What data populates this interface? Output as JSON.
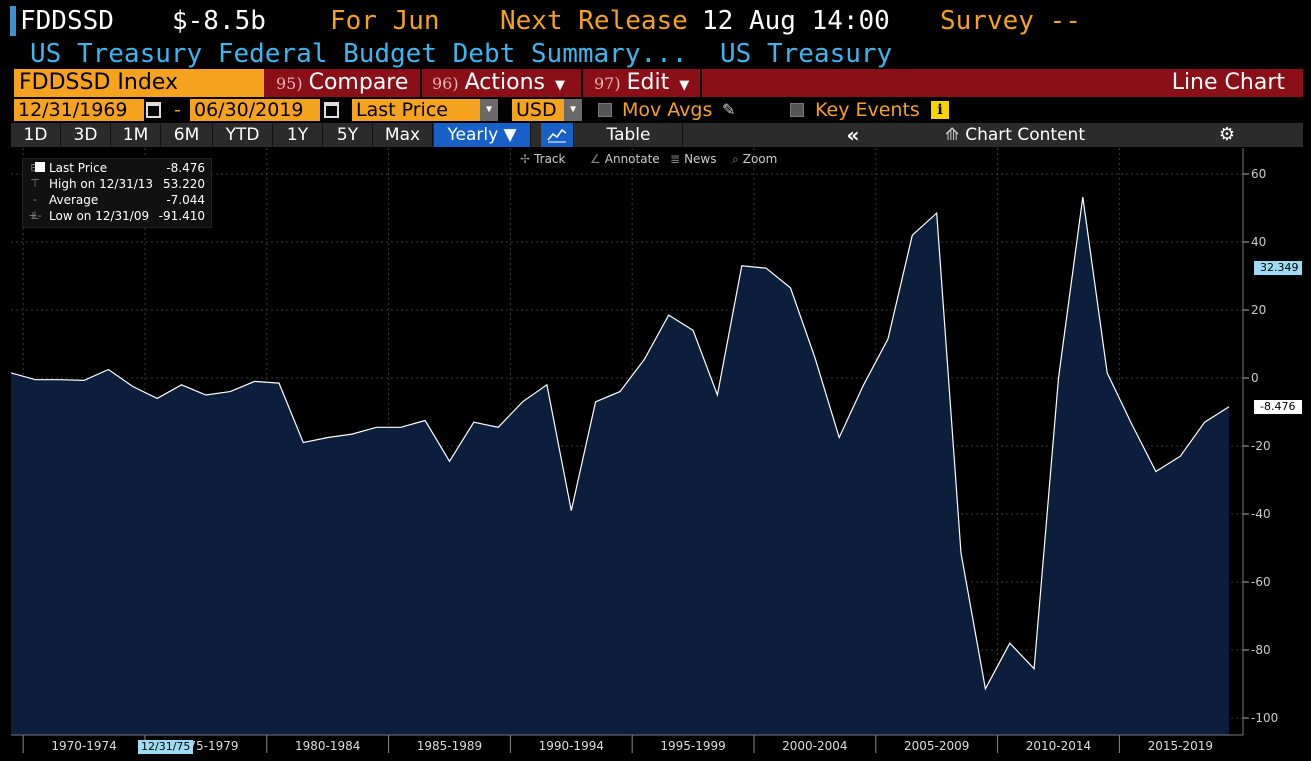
{
  "header": {
    "ticker": "FDDSSD",
    "value": "$-8.5b",
    "for_label": "For Jun",
    "next_release": "Next Release",
    "release_time": "12 Aug 14:00",
    "survey": "Survey --",
    "description": "US Treasury Federal Budget Debt Summary...",
    "source": "US Treasury"
  },
  "command_bar": {
    "security": "FDDSSD Index",
    "compare_num": "95)",
    "compare": "Compare",
    "actions_num": "96)",
    "actions": "Actions",
    "edit_num": "97)",
    "edit": "Edit",
    "chart_type": "Line Chart"
  },
  "range": {
    "start": "12/31/1969",
    "dash": "-",
    "end": "06/30/2019",
    "field": "Last Price",
    "currency": "USD",
    "mov_avgs": "Mov Avgs",
    "key_events": "Key Events",
    "info_icon": "i"
  },
  "periods": [
    "1D",
    "3D",
    "1M",
    "6M",
    "YTD",
    "1Y",
    "5Y",
    "Max"
  ],
  "frequency": "Yearly ▼",
  "table_label": "Table",
  "collapse_icon": "«",
  "chart_content": "Chart Content",
  "gear_icon": "⚙",
  "tools": {
    "track": "Track",
    "annotate": "Annotate",
    "news": "News",
    "zoom": "Zoom"
  },
  "legend": {
    "last_label": "Last Price",
    "last_value": "-8.476",
    "high_label": "High on 12/31/13",
    "high_value": "53.220",
    "avg_label": "Average",
    "avg_value": "-7.044",
    "low_label": "Low on 12/31/09",
    "low_value": "-91.410"
  },
  "cursor_date": "12/31/75",
  "chart_data": {
    "type": "area",
    "x": [
      1969,
      1970,
      1971,
      1972,
      1973,
      1974,
      1975,
      1976,
      1977,
      1978,
      1979,
      1980,
      1981,
      1982,
      1983,
      1984,
      1985,
      1986,
      1987,
      1988,
      1989,
      1990,
      1991,
      1992,
      1993,
      1994,
      1995,
      1996,
      1997,
      1998,
      1999,
      2000,
      2001,
      2002,
      2003,
      2004,
      2005,
      2006,
      2007,
      2008,
      2009,
      2010,
      2011,
      2012,
      2013,
      2014,
      2015,
      2016,
      2017,
      2018,
      2019
    ],
    "values": [
      1.5,
      -0.5,
      -0.5,
      -0.7,
      2.5,
      -2.5,
      -6,
      -2,
      -5,
      -4,
      -1,
      -1.5,
      -19,
      -17.5,
      -16.5,
      -14.5,
      -14.5,
      -12.5,
      -24.5,
      -13,
      -14.5,
      -7,
      -2,
      -39,
      -7,
      -4,
      5.5,
      18.5,
      14,
      -5,
      33,
      32.3,
      26.5,
      6,
      -17.5,
      -2,
      11.5,
      42,
      48.5,
      -51.5,
      -91.41,
      -78,
      -85.5,
      0,
      53.22,
      1.5,
      -13.5,
      -27.5,
      -23,
      -13,
      -8.476
    ],
    "x_ticks": [
      "1970-1974",
      "1975-1979",
      "1980-1984",
      "1985-1989",
      "1990-1994",
      "1995-1999",
      "2000-2004",
      "2005-2009",
      "2010-2014",
      "2015-2019"
    ],
    "y_ticks": [
      60,
      40,
      20,
      0,
      -20,
      -40,
      -60,
      -80,
      -100
    ],
    "ylim": [
      -105,
      65
    ],
    "grid": true,
    "last_value_label": "-8.476",
    "crosshair_value_label": "32.349",
    "line_color": "#ffffff",
    "fill_color": "#0b1f3d",
    "crosshair_color": "#8fd8ff"
  }
}
